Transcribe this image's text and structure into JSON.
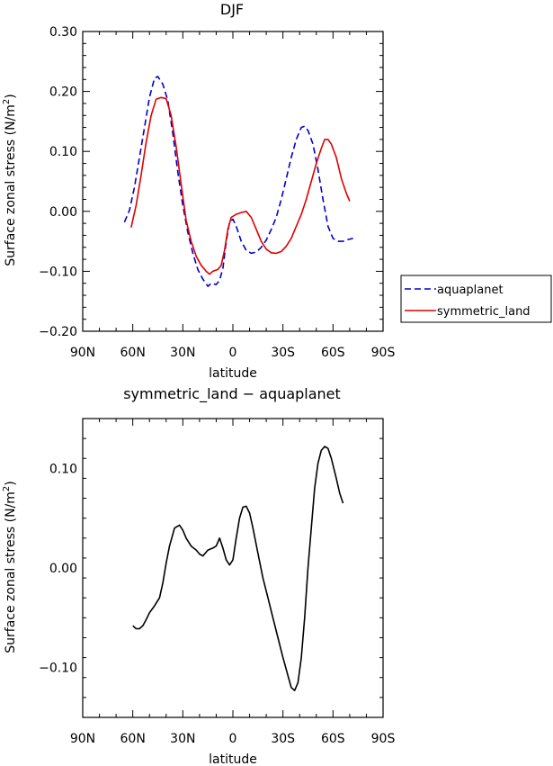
{
  "chart_data": [
    {
      "type": "line",
      "title": "DJF",
      "xlabel": "latitude",
      "ylabel": "Surface zonal stress (N/m²)",
      "ylabel_parts": {
        "main": "Surface zonal stress (N/m",
        "sup": "2",
        "end": ")"
      },
      "xlim": [
        90,
        -90
      ],
      "ylim": [
        -0.2,
        0.3
      ],
      "x_ticks": [
        90,
        60,
        30,
        0,
        -30,
        -60,
        -90
      ],
      "x_tick_labels": [
        "90N",
        "60N",
        "30N",
        "0",
        "30S",
        "60S",
        "90S"
      ],
      "y_ticks": [
        -0.2,
        -0.1,
        0.0,
        0.1,
        0.2,
        0.3
      ],
      "y_tick_labels": [
        "−0.20",
        "−0.10",
        "0.00",
        "0.10",
        "0.20",
        "0.30"
      ],
      "grid": false,
      "legend_position": "right",
      "series": [
        {
          "name": "aquaplanet",
          "color": "#0000cc",
          "dash": "dashed",
          "points": [
            [
              65,
              -0.018
            ],
            [
              62,
              0.002
            ],
            [
              59,
              0.04
            ],
            [
              56,
              0.09
            ],
            [
              53,
              0.14
            ],
            [
              50,
              0.19
            ],
            [
              47,
              0.222
            ],
            [
              45,
              0.225
            ],
            [
              42,
              0.212
            ],
            [
              39,
              0.185
            ],
            [
              36,
              0.13
            ],
            [
              33,
              0.065
            ],
            [
              30,
              0.01
            ],
            [
              27,
              -0.035
            ],
            [
              24,
              -0.07
            ],
            [
              21,
              -0.097
            ],
            [
              18,
              -0.113
            ],
            [
              15,
              -0.125
            ],
            [
              13,
              -0.12
            ],
            [
              10,
              -0.122
            ],
            [
              8,
              -0.115
            ],
            [
              6,
              -0.095
            ],
            [
              4,
              -0.05
            ],
            [
              2,
              -0.018
            ],
            [
              0,
              -0.013
            ],
            [
              -2,
              -0.025
            ],
            [
              -5,
              -0.05
            ],
            [
              -8,
              -0.065
            ],
            [
              -11,
              -0.07
            ],
            [
              -14,
              -0.068
            ],
            [
              -17,
              -0.06
            ],
            [
              -20,
              -0.048
            ],
            [
              -23,
              -0.03
            ],
            [
              -26,
              -0.01
            ],
            [
              -29,
              0.02
            ],
            [
              -32,
              0.055
            ],
            [
              -35,
              0.09
            ],
            [
              -38,
              0.12
            ],
            [
              -41,
              0.14
            ],
            [
              -43,
              0.142
            ],
            [
              -45,
              0.135
            ],
            [
              -48,
              0.112
            ],
            [
              -51,
              0.07
            ],
            [
              -54,
              0.02
            ],
            [
              -57,
              -0.025
            ],
            [
              -60,
              -0.045
            ],
            [
              -63,
              -0.05
            ],
            [
              -66,
              -0.05
            ],
            [
              -69,
              -0.047
            ],
            [
              -72,
              -0.045
            ]
          ]
        },
        {
          "name": "symmetric_land",
          "color": "#e00000",
          "dash": "solid",
          "points": [
            [
              61,
              -0.027
            ],
            [
              58,
              0.01
            ],
            [
              55,
              0.06
            ],
            [
              52,
              0.115
            ],
            [
              49,
              0.16
            ],
            [
              46,
              0.187
            ],
            [
              43,
              0.19
            ],
            [
              40,
              0.188
            ],
            [
              37,
              0.16
            ],
            [
              34,
              0.108
            ],
            [
              31,
              0.045
            ],
            [
              28,
              -0.015
            ],
            [
              25,
              -0.05
            ],
            [
              22,
              -0.075
            ],
            [
              19,
              -0.09
            ],
            [
              16,
              -0.1
            ],
            [
              14,
              -0.105
            ],
            [
              12,
              -0.1
            ],
            [
              9,
              -0.097
            ],
            [
              7,
              -0.09
            ],
            [
              5,
              -0.065
            ],
            [
              3,
              -0.03
            ],
            [
              1,
              -0.01
            ],
            [
              -2,
              -0.005
            ],
            [
              -5,
              -0.002
            ],
            [
              -8,
              0.0
            ],
            [
              -11,
              -0.01
            ],
            [
              -14,
              -0.03
            ],
            [
              -17,
              -0.05
            ],
            [
              -20,
              -0.063
            ],
            [
              -23,
              -0.069
            ],
            [
              -26,
              -0.07
            ],
            [
              -29,
              -0.067
            ],
            [
              -32,
              -0.058
            ],
            [
              -35,
              -0.045
            ],
            [
              -38,
              -0.025
            ],
            [
              -41,
              -0.005
            ],
            [
              -44,
              0.02
            ],
            [
              -47,
              0.05
            ],
            [
              -50,
              0.08
            ],
            [
              -53,
              0.105
            ],
            [
              -55,
              0.12
            ],
            [
              -57,
              0.12
            ],
            [
              -59,
              0.112
            ],
            [
              -62,
              0.09
            ],
            [
              -65,
              0.055
            ],
            [
              -68,
              0.03
            ],
            [
              -70,
              0.017
            ]
          ]
        }
      ]
    },
    {
      "type": "line",
      "title": "symmetric_land − aquaplanet",
      "xlabel": "latitude",
      "ylabel": "Surface zonal stress (N/m²)",
      "ylabel_parts": {
        "main": "Surface zonal stress (N/m",
        "sup": "2",
        "end": ")"
      },
      "xlim": [
        90,
        -90
      ],
      "ylim": [
        -0.15,
        0.15
      ],
      "x_ticks": [
        90,
        60,
        30,
        0,
        -30,
        -60,
        -90
      ],
      "x_tick_labels": [
        "90N",
        "60N",
        "30N",
        "0",
        "30S",
        "60S",
        "90S"
      ],
      "y_ticks": [
        -0.1,
        0.0,
        0.1
      ],
      "y_tick_labels": [
        "−0.10",
        "0.00",
        "0.10"
      ],
      "grid": false,
      "series": [
        {
          "color": "#000000",
          "dash": "solid",
          "points": [
            [
              60,
              -0.058
            ],
            [
              58,
              -0.061
            ],
            [
              56,
              -0.061
            ],
            [
              54,
              -0.058
            ],
            [
              52,
              -0.052
            ],
            [
              50,
              -0.045
            ],
            [
              47,
              -0.038
            ],
            [
              44,
              -0.03
            ],
            [
              42,
              -0.015
            ],
            [
              40,
              0.005
            ],
            [
              38,
              0.022
            ],
            [
              35,
              0.04
            ],
            [
              32,
              0.043
            ],
            [
              30,
              0.038
            ],
            [
              28,
              0.03
            ],
            [
              25,
              0.022
            ],
            [
              22,
              0.018
            ],
            [
              20,
              0.014
            ],
            [
              18,
              0.012
            ],
            [
              15,
              0.018
            ],
            [
              12,
              0.02
            ],
            [
              10,
              0.022
            ],
            [
              8,
              0.03
            ],
            [
              6,
              0.02
            ],
            [
              4,
              0.008
            ],
            [
              2,
              0.003
            ],
            [
              0,
              0.008
            ],
            [
              -2,
              0.03
            ],
            [
              -4,
              0.05
            ],
            [
              -6,
              0.061
            ],
            [
              -8,
              0.062
            ],
            [
              -10,
              0.055
            ],
            [
              -12,
              0.04
            ],
            [
              -15,
              0.015
            ],
            [
              -18,
              -0.01
            ],
            [
              -21,
              -0.03
            ],
            [
              -24,
              -0.05
            ],
            [
              -27,
              -0.07
            ],
            [
              -30,
              -0.09
            ],
            [
              -33,
              -0.108
            ],
            [
              -35,
              -0.12
            ],
            [
              -37,
              -0.123
            ],
            [
              -39,
              -0.115
            ],
            [
              -41,
              -0.09
            ],
            [
              -43,
              -0.05
            ],
            [
              -45,
              0.0
            ],
            [
              -47,
              0.04
            ],
            [
              -49,
              0.08
            ],
            [
              -51,
              0.105
            ],
            [
              -53,
              0.118
            ],
            [
              -55,
              0.122
            ],
            [
              -57,
              0.12
            ],
            [
              -59,
              0.11
            ],
            [
              -62,
              0.09
            ],
            [
              -64,
              0.075
            ],
            [
              -66,
              0.065
            ]
          ]
        }
      ]
    }
  ]
}
